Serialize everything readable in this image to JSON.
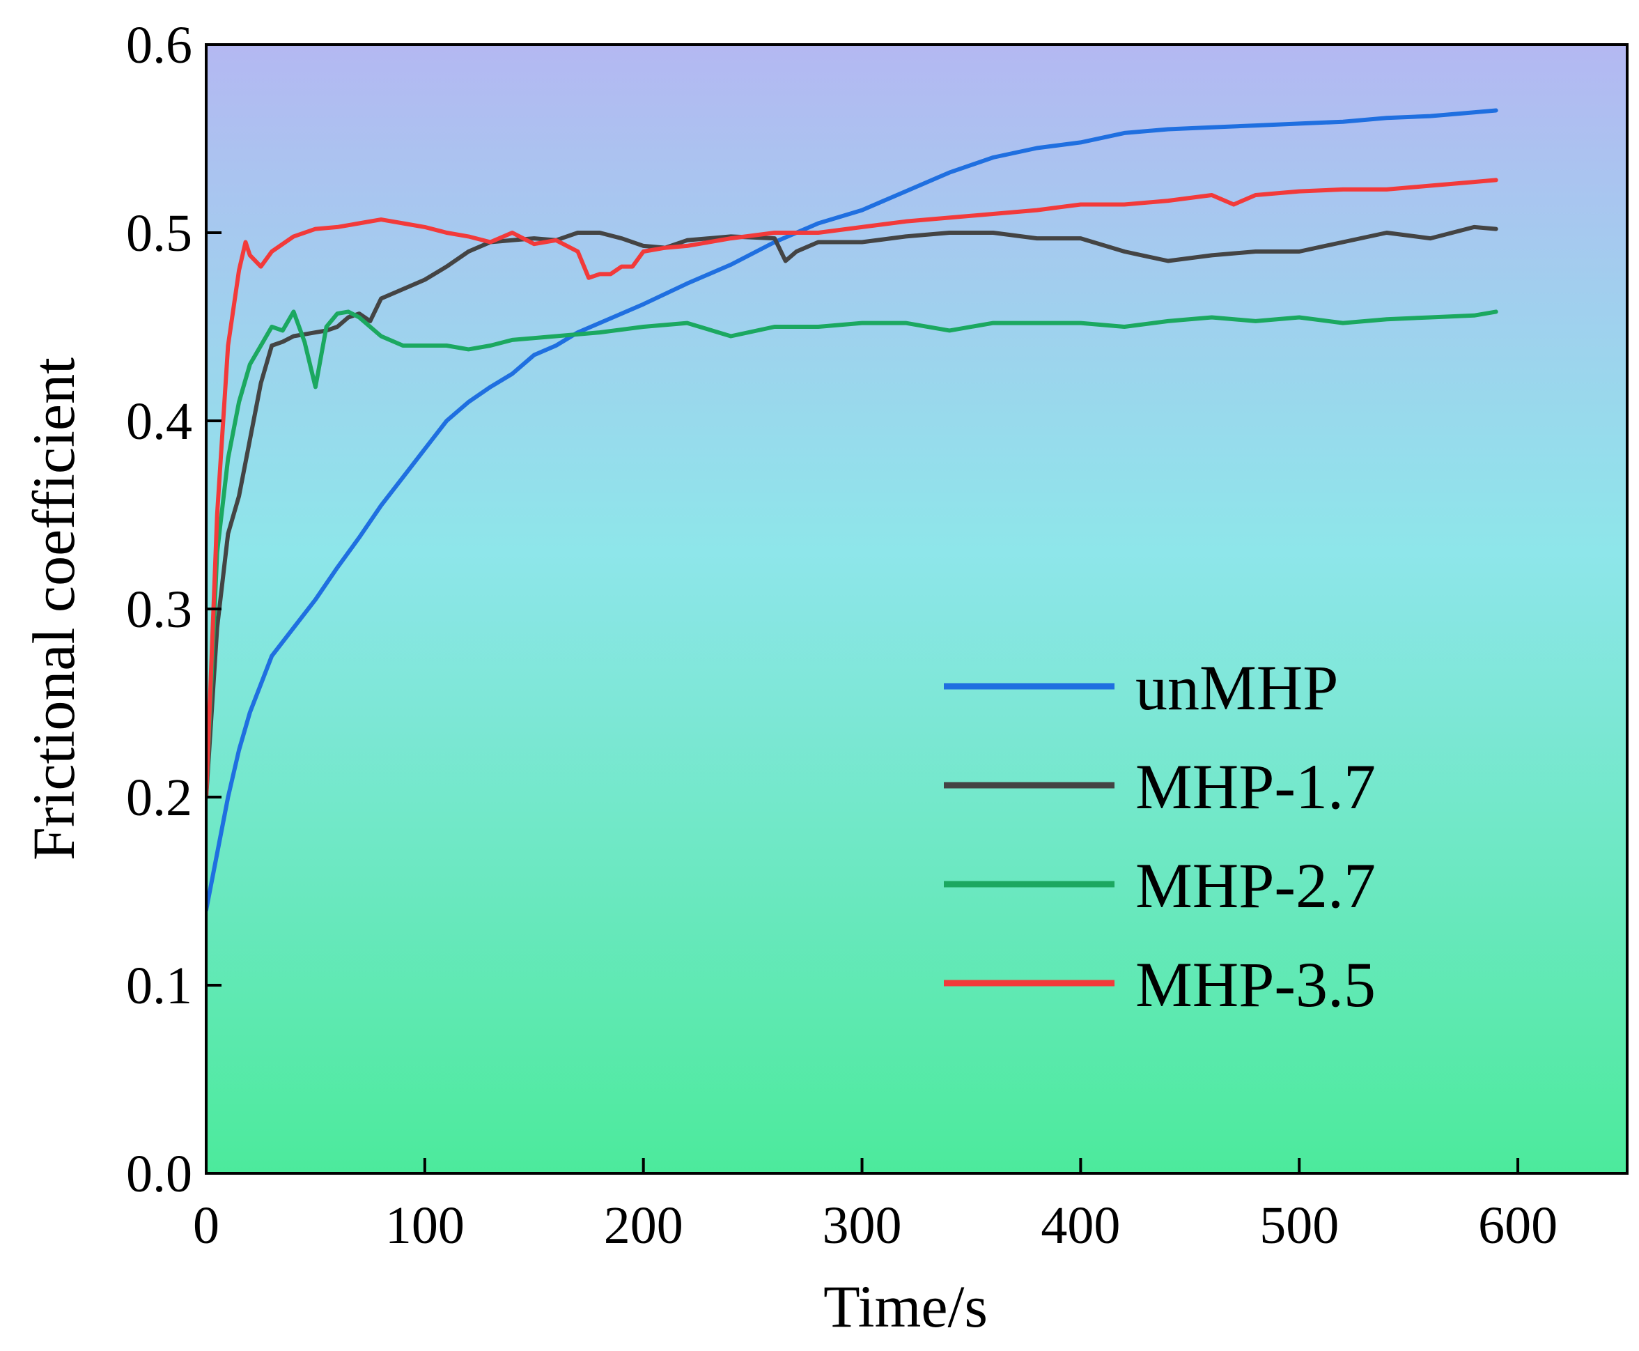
{
  "chart_data": {
    "type": "line",
    "title": "",
    "xlabel": "Time/s",
    "ylabel": "Frictional coefficient",
    "xlim": [
      0,
      650
    ],
    "ylim": [
      0.0,
      0.6
    ],
    "xticks": [
      0,
      100,
      200,
      300,
      400,
      500,
      600
    ],
    "yticks": [
      0.0,
      0.1,
      0.2,
      0.3,
      0.4,
      0.5,
      0.6
    ],
    "xtick_labels": [
      "0",
      "100",
      "200",
      "300",
      "400",
      "500",
      "600"
    ],
    "ytick_labels": [
      "0.0",
      "0.1",
      "0.2",
      "0.3",
      "0.4",
      "0.5",
      "0.6"
    ],
    "grid": false,
    "legend_position": "lower-right",
    "background_gradient": [
      "#b4b8f2",
      "#8ee6ea",
      "#4cea9c"
    ],
    "series": [
      {
        "name": "unMHP",
        "color": "#1f6fe0",
        "x": [
          0,
          5,
          10,
          15,
          20,
          30,
          40,
          50,
          60,
          70,
          80,
          90,
          100,
          110,
          120,
          130,
          140,
          150,
          160,
          170,
          180,
          190,
          200,
          220,
          240,
          260,
          280,
          300,
          320,
          340,
          360,
          380,
          400,
          420,
          440,
          460,
          480,
          500,
          520,
          540,
          560,
          580,
          590
        ],
        "y": [
          0.14,
          0.17,
          0.2,
          0.225,
          0.245,
          0.275,
          0.29,
          0.305,
          0.322,
          0.338,
          0.355,
          0.37,
          0.385,
          0.4,
          0.41,
          0.418,
          0.425,
          0.435,
          0.44,
          0.447,
          0.452,
          0.457,
          0.462,
          0.473,
          0.483,
          0.495,
          0.505,
          0.512,
          0.522,
          0.532,
          0.54,
          0.545,
          0.548,
          0.553,
          0.555,
          0.556,
          0.557,
          0.558,
          0.559,
          0.561,
          0.562,
          0.564,
          0.565
        ]
      },
      {
        "name": "MHP-1.7",
        "color": "#444444",
        "x": [
          0,
          5,
          10,
          15,
          20,
          25,
          30,
          35,
          40,
          45,
          50,
          55,
          60,
          65,
          70,
          75,
          80,
          90,
          100,
          110,
          120,
          130,
          140,
          150,
          160,
          170,
          180,
          190,
          200,
          210,
          220,
          240,
          260,
          265,
          270,
          280,
          300,
          320,
          340,
          360,
          380,
          400,
          420,
          440,
          460,
          480,
          500,
          520,
          540,
          560,
          580,
          590
        ],
        "y": [
          0.2,
          0.29,
          0.34,
          0.36,
          0.39,
          0.42,
          0.44,
          0.442,
          0.445,
          0.446,
          0.447,
          0.448,
          0.45,
          0.455,
          0.457,
          0.453,
          0.465,
          0.47,
          0.475,
          0.482,
          0.49,
          0.495,
          0.496,
          0.497,
          0.496,
          0.5,
          0.5,
          0.497,
          0.493,
          0.492,
          0.496,
          0.498,
          0.497,
          0.485,
          0.49,
          0.495,
          0.495,
          0.498,
          0.5,
          0.5,
          0.497,
          0.497,
          0.49,
          0.485,
          0.488,
          0.49,
          0.49,
          0.495,
          0.5,
          0.497,
          0.503,
          0.502
        ]
      },
      {
        "name": "MHP-2.7",
        "color": "#1ba860",
        "x": [
          0,
          5,
          10,
          15,
          20,
          25,
          30,
          35,
          40,
          45,
          50,
          55,
          60,
          65,
          70,
          80,
          90,
          100,
          110,
          120,
          130,
          140,
          160,
          180,
          200,
          220,
          240,
          260,
          280,
          300,
          320,
          340,
          360,
          380,
          400,
          420,
          440,
          460,
          480,
          500,
          520,
          540,
          560,
          580,
          590
        ],
        "y": [
          0.2,
          0.33,
          0.38,
          0.41,
          0.43,
          0.44,
          0.45,
          0.448,
          0.458,
          0.442,
          0.418,
          0.45,
          0.457,
          0.458,
          0.455,
          0.445,
          0.44,
          0.44,
          0.44,
          0.438,
          0.44,
          0.443,
          0.445,
          0.447,
          0.45,
          0.452,
          0.445,
          0.45,
          0.45,
          0.452,
          0.452,
          0.448,
          0.452,
          0.452,
          0.452,
          0.45,
          0.453,
          0.455,
          0.453,
          0.455,
          0.452,
          0.454,
          0.455,
          0.456,
          0.458
        ]
      },
      {
        "name": "MHP-3.5",
        "color": "#f23a3a",
        "x": [
          0,
          5,
          10,
          15,
          18,
          20,
          25,
          30,
          40,
          50,
          60,
          70,
          80,
          90,
          100,
          110,
          120,
          130,
          140,
          150,
          160,
          170,
          175,
          180,
          185,
          190,
          195,
          200,
          210,
          220,
          240,
          260,
          280,
          300,
          320,
          340,
          360,
          380,
          400,
          420,
          440,
          460,
          470,
          480,
          500,
          520,
          540,
          560,
          580,
          590
        ],
        "y": [
          0.2,
          0.35,
          0.44,
          0.48,
          0.495,
          0.488,
          0.482,
          0.49,
          0.498,
          0.502,
          0.503,
          0.505,
          0.507,
          0.505,
          0.503,
          0.5,
          0.498,
          0.495,
          0.5,
          0.494,
          0.496,
          0.49,
          0.476,
          0.478,
          0.478,
          0.482,
          0.482,
          0.49,
          0.492,
          0.493,
          0.497,
          0.5,
          0.5,
          0.503,
          0.506,
          0.508,
          0.51,
          0.512,
          0.515,
          0.515,
          0.517,
          0.52,
          0.515,
          0.52,
          0.522,
          0.523,
          0.523,
          0.525,
          0.527,
          0.528
        ]
      }
    ]
  }
}
